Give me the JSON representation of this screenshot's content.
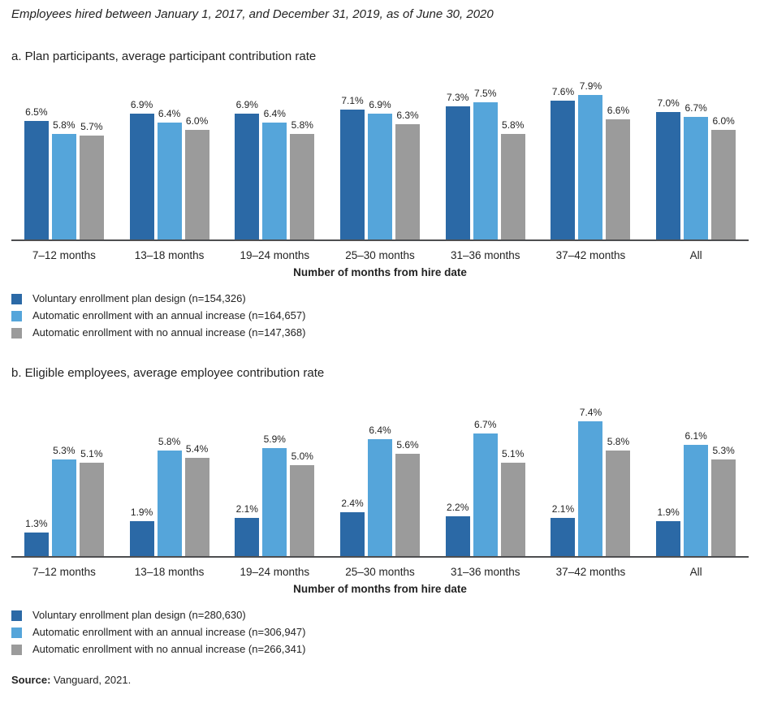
{
  "fig_title": "Employees hired between January 1, 2017, and December 31, 2019, as of June 30, 2020",
  "source": {
    "label": "Source:",
    "text": " Vanguard, 2021."
  },
  "colors": {
    "dark_blue": "#2b69a6",
    "light_blue": "#55a5da",
    "gray": "#9b9b9b",
    "axis": "#4d4e50"
  },
  "chart_data": [
    {
      "type": "bar",
      "section_label": "a. Plan participants, average participant contribution rate",
      "xlabel": "Number of months from hire date",
      "value_suffix": "%",
      "ylim": [
        0,
        8
      ],
      "grid": false,
      "legend_position": "bottom-left",
      "categories": [
        "7–12 months",
        "13–18 months",
        "19–24 months",
        "25–30 months",
        "31–36 months",
        "37–42 months",
        "All"
      ],
      "series": [
        {
          "name": "Voluntary enrollment plan design (n=154,326)",
          "color": "#2b69a6",
          "values": [
            6.5,
            6.9,
            6.9,
            7.1,
            7.3,
            7.6,
            7.0
          ]
        },
        {
          "name": "Automatic enrollment with an annual increase (n=164,657)",
          "color": "#55a5da",
          "values": [
            5.8,
            6.4,
            6.4,
            6.9,
            7.5,
            7.9,
            6.7
          ]
        },
        {
          "name": "Automatic enrollment with no annual increase  (n=147,368)",
          "color": "#9b9b9b",
          "values": [
            5.7,
            6.0,
            5.8,
            6.3,
            5.8,
            6.6,
            6.0
          ]
        }
      ]
    },
    {
      "type": "bar",
      "section_label": "b. Eligible employees, average employee contribution rate",
      "xlabel": "Number of months from hire date",
      "value_suffix": "%",
      "ylim": [
        0,
        8
      ],
      "grid": false,
      "legend_position": "bottom-left",
      "categories": [
        "7–12 months",
        "13–18 months",
        "19–24 months",
        "25–30 months",
        "31–36 months",
        "37–42 months",
        "All"
      ],
      "series": [
        {
          "name": "Voluntary enrollment plan design (n=280,630)",
          "color": "#2b69a6",
          "values": [
            1.3,
            1.9,
            2.1,
            2.4,
            2.2,
            2.1,
            1.9
          ]
        },
        {
          "name": "Automatic enrollment with an annual increase (n=306,947)",
          "color": "#55a5da",
          "values": [
            5.3,
            5.8,
            5.9,
            6.4,
            6.7,
            7.4,
            6.1
          ]
        },
        {
          "name": "Automatic enrollment with no annual increase (n=266,341)",
          "color": "#9b9b9b",
          "values": [
            5.1,
            5.4,
            5.0,
            5.6,
            5.1,
            5.8,
            5.3
          ]
        }
      ]
    }
  ]
}
